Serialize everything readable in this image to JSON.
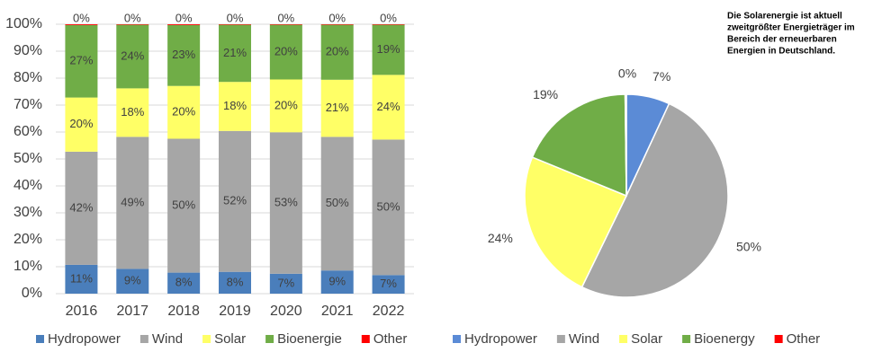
{
  "chart_data": [
    {
      "type": "bar",
      "categories": [
        "2016",
        "2017",
        "2018",
        "2019",
        "2020",
        "2021",
        "2022"
      ],
      "series": [
        {
          "name": "Hydropower",
          "color": "#4a7ebb",
          "values": [
            10.7,
            9.2,
            7.8,
            8.1,
            7.4,
            8.6,
            6.9
          ],
          "value_labels": [
            "11%",
            "9%",
            "8%",
            "8%",
            "7%",
            "9%",
            "7%"
          ]
        },
        {
          "name": "Wind",
          "color": "#a6a6a6",
          "values": [
            42.0,
            49.0,
            49.7,
            52.3,
            52.5,
            49.6,
            50.3
          ],
          "value_labels": [
            "42%",
            "49%",
            "50%",
            "52%",
            "53%",
            "50%",
            "50%"
          ]
        },
        {
          "name": "Solar",
          "color": "#ffff66",
          "values": [
            20.1,
            18.0,
            19.6,
            18.2,
            19.6,
            21.2,
            24.0
          ],
          "value_labels": [
            "20%",
            "18%",
            "20%",
            "18%",
            "20%",
            "21%",
            "24%"
          ]
        },
        {
          "name": "Bioenergie",
          "color": "#70ad47",
          "values": [
            26.9,
            23.6,
            22.6,
            21.2,
            20.3,
            20.4,
            18.6
          ],
          "value_labels": [
            "27%",
            "24%",
            "23%",
            "21%",
            "20%",
            "20%",
            "19%"
          ]
        },
        {
          "name": "Other",
          "color": "#ff0000",
          "values": [
            0.3,
            0.2,
            0.3,
            0.2,
            0.2,
            0.2,
            0.2
          ],
          "value_labels": [
            "0%",
            "0%",
            "0%",
            "0%",
            "0%",
            "0%",
            "0%"
          ]
        }
      ],
      "ylim": [
        0,
        100
      ],
      "yticks": [
        {
          "value": 0,
          "label": "0%"
        },
        {
          "value": 10,
          "label": "10%"
        },
        {
          "value": 20,
          "label": "20%"
        },
        {
          "value": 30,
          "label": "30%"
        },
        {
          "value": 40,
          "label": "40%"
        },
        {
          "value": 50,
          "label": "50%"
        },
        {
          "value": 60,
          "label": "60%"
        },
        {
          "value": 70,
          "label": "70%"
        },
        {
          "value": 80,
          "label": "80%"
        },
        {
          "value": 90,
          "label": "90%"
        },
        {
          "value": 100,
          "label": "100%"
        }
      ],
      "grid": true,
      "legend": "bottom"
    },
    {
      "type": "pie",
      "annotation": [
        "Die Solarenergie ist aktuell",
        "zweitgrößter Energieträger im",
        "Bereich der erneuerbaren",
        "Energien in Deutschland."
      ],
      "categories": [
        "Hydropower",
        "Wind",
        "Solar",
        "Bioenergy",
        "Other"
      ],
      "colors": [
        "#5b8bd6",
        "#a6a6a6",
        "#ffff66",
        "#70ad47",
        "#ff0000"
      ],
      "values": [
        6.9,
        50.3,
        24.0,
        18.6,
        0.2
      ],
      "value_labels": [
        "7%",
        "50%",
        "24%",
        "19%",
        "0%"
      ],
      "legend": "bottom"
    }
  ]
}
